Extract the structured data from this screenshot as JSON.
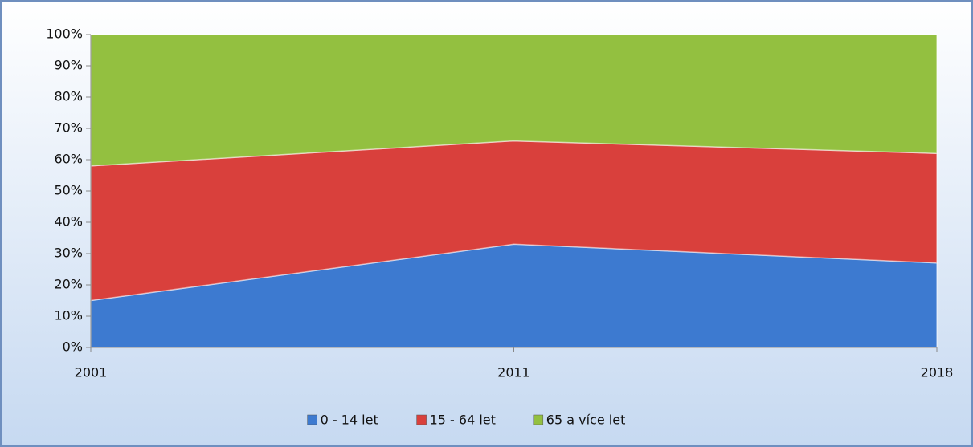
{
  "chart_data": {
    "type": "stacked_area_100",
    "categories": [
      "2001",
      "2011",
      "2018"
    ],
    "series": [
      {
        "name": "0 - 14 let",
        "color": "#3d7ad0",
        "values": [
          15,
          33,
          27
        ]
      },
      {
        "name": "15 - 64 let",
        "color": "#d9403c",
        "values": [
          43,
          33,
          35
        ]
      },
      {
        "name": "65 a více let",
        "color": "#93c040",
        "values": [
          42,
          34,
          38
        ]
      }
    ],
    "ylim": [
      0,
      100
    ],
    "yticks": [
      {
        "value": 0,
        "label": "0%"
      },
      {
        "value": 10,
        "label": "10%"
      },
      {
        "value": 20,
        "label": "20%"
      },
      {
        "value": 30,
        "label": "30%"
      },
      {
        "value": 40,
        "label": "40%"
      },
      {
        "value": 50,
        "label": "50%"
      },
      {
        "value": 60,
        "label": "60%"
      },
      {
        "value": 70,
        "label": "70%"
      },
      {
        "value": 80,
        "label": "80%"
      },
      {
        "value": 90,
        "label": "90%"
      },
      {
        "value": 100,
        "label": "100%"
      }
    ],
    "legend": "bottom"
  }
}
